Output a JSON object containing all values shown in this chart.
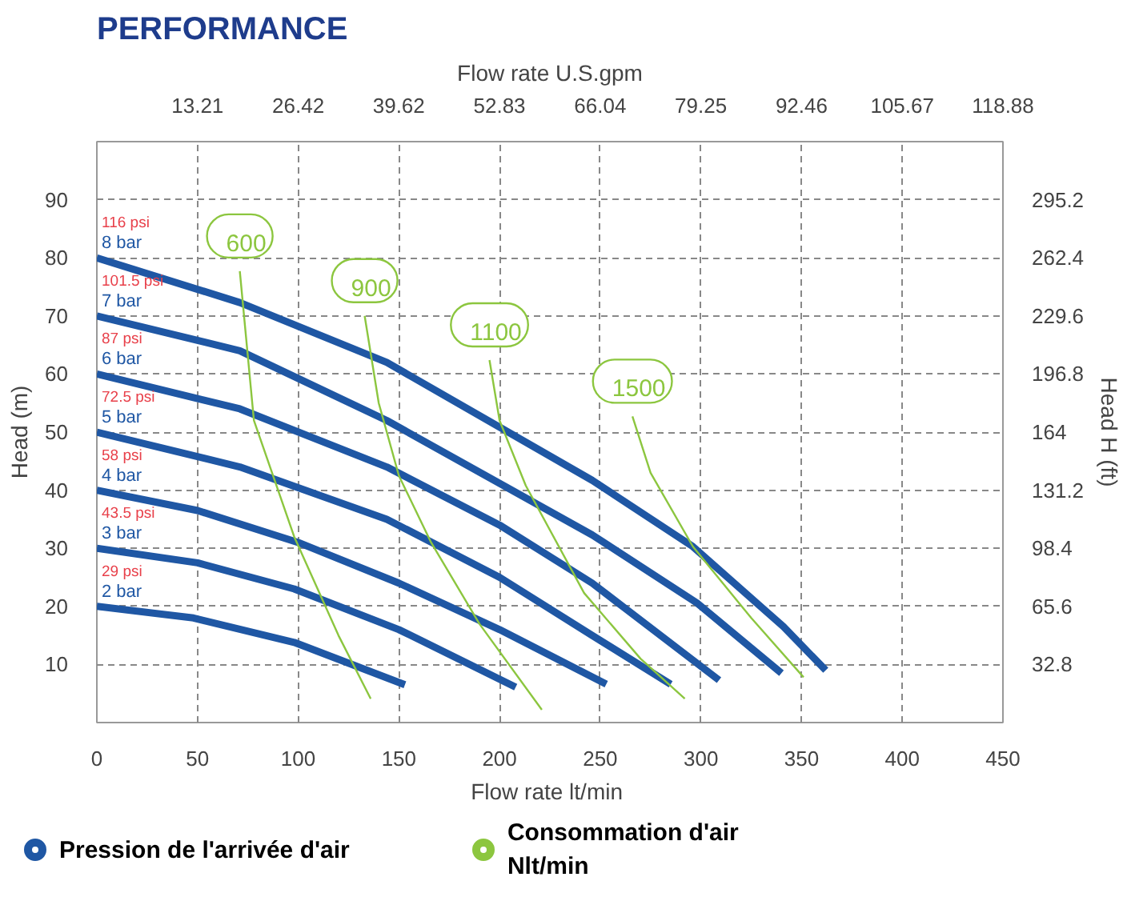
{
  "chart_data": {
    "type": "line",
    "title": "PERFORMANCE",
    "xlabel": "Flow rate  lt/min",
    "x2label": "Flow rate U.S.gpm",
    "ylabel": "Head (m)",
    "y2label": "Head H (ft)",
    "xlim": [
      0,
      450
    ],
    "xticks": [
      0,
      50,
      100,
      150,
      200,
      250,
      300,
      350,
      400,
      450
    ],
    "x2lim": [
      0,
      118.88
    ],
    "x2ticks": [
      13.21,
      26.42,
      39.62,
      52.83,
      66.04,
      79.25,
      92.46,
      105.67,
      118.88
    ],
    "ylim": [
      0,
      100
    ],
    "yticks": [
      10,
      20,
      30,
      40,
      50,
      60,
      70,
      80,
      90
    ],
    "y2lim": [
      0,
      328
    ],
    "y2ticks": [
      32.8,
      65.6,
      98.4,
      131.2,
      164,
      196.8,
      229.6,
      262.4,
      295.2
    ],
    "grid": true,
    "line_style": "solid",
    "marker": "none",
    "series": [
      {
        "name": "8 bar",
        "color": "#1f57a4",
        "x": [
          0,
          71,
          144,
          246,
          296,
          341,
          362
        ],
        "values": [
          80,
          72.3,
          62,
          41.7,
          30.3,
          16.5,
          9
        ]
      },
      {
        "name": "7 bar",
        "color": "#1f57a4",
        "x": [
          0,
          71,
          144,
          246,
          298,
          340
        ],
        "values": [
          70,
          64,
          52,
          32.3,
          20.6,
          8.5
        ]
      },
      {
        "name": "6 bar",
        "color": "#1f57a4",
        "x": [
          0,
          71,
          144,
          200,
          246,
          309
        ],
        "values": [
          60,
          54,
          44,
          34,
          24,
          7.3
        ]
      },
      {
        "name": "5 bar",
        "color": "#1f57a4",
        "x": [
          0,
          71,
          144,
          200,
          246,
          285
        ],
        "values": [
          50,
          44,
          35,
          25,
          15,
          6.6
        ]
      },
      {
        "name": "4 bar",
        "color": "#1f57a4",
        "x": [
          0,
          50,
          100,
          150,
          200,
          253
        ],
        "values": [
          40,
          36.5,
          31,
          24,
          16,
          6.6
        ]
      },
      {
        "name": "3 bar",
        "color": "#1f57a4",
        "x": [
          0,
          50,
          98,
          150,
          208
        ],
        "values": [
          30,
          27.5,
          23,
          16,
          6.1
        ]
      },
      {
        "name": "2 bar",
        "color": "#1f57a4",
        "x": [
          0,
          48,
          98,
          153
        ],
        "values": [
          20,
          18,
          13.8,
          6.5
        ]
      },
      {
        "name": "600",
        "color": "#8cc63f",
        "x": [
          71,
          78,
          98,
          120,
          136
        ],
        "values": [
          77.7,
          52,
          32,
          15,
          4.1
        ]
      },
      {
        "name": "900",
        "color": "#8cc63f",
        "x": [
          133,
          140,
          150,
          166,
          190,
          221
        ],
        "values": [
          70,
          55,
          42.5,
          31,
          17,
          2.2
        ]
      },
      {
        "name": "1100",
        "color": "#8cc63f",
        "x": [
          195,
          200,
          213,
          242,
          270,
          292
        ],
        "values": [
          62.4,
          52,
          40.8,
          22.3,
          11,
          4.1
        ]
      },
      {
        "name": "1500",
        "color": "#8cc63f",
        "x": [
          266,
          275,
          296,
          325,
          351
        ],
        "values": [
          52.7,
          43,
          30.3,
          18,
          7.8
        ]
      }
    ],
    "annotations": [
      {
        "text": "116 psi",
        "y": 80
      },
      {
        "text": "101.5 psi",
        "y": 70
      },
      {
        "text": "87 psi",
        "y": 60
      },
      {
        "text": "72.5 psi",
        "y": 50
      },
      {
        "text": "58 psi",
        "y": 40
      },
      {
        "text": "43.5 psi",
        "y": 30
      },
      {
        "text": "29 psi",
        "y": 20
      },
      "Pression de l'arrivée d'air",
      "Consommation d'air Nlt/min"
    ]
  }
}
